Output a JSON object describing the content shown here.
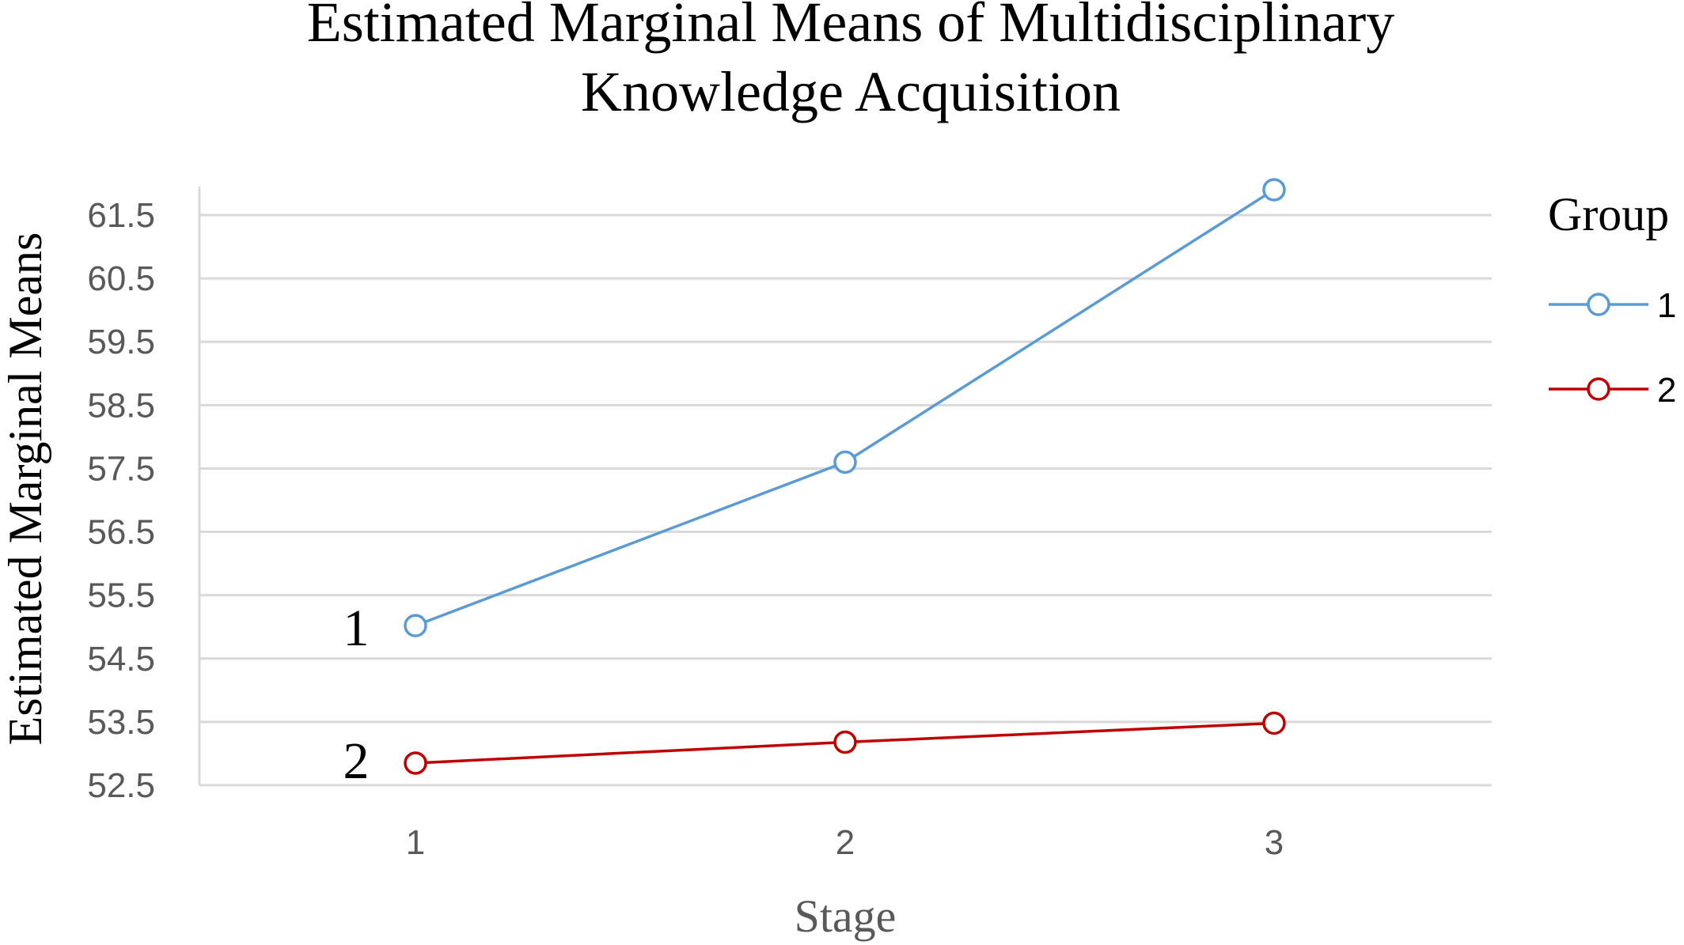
{
  "chart_data": {
    "type": "line",
    "title_line1": "Estimated Marginal Means of Multidisciplinary",
    "title_line2": "Knowledge Acquisition",
    "xlabel": "Stage",
    "ylabel": "Estimated Marginal Means",
    "categories": [
      "1",
      "2",
      "3"
    ],
    "yticks": [
      "61.5",
      "60.5",
      "59.5",
      "58.5",
      "57.5",
      "56.5",
      "55.5",
      "54.5",
      "53.5",
      "52.5"
    ],
    "ylim": [
      52.5,
      61.5
    ],
    "grid": true,
    "legend_title": "Group",
    "legend_position": "right",
    "series": [
      {
        "name": "1",
        "color": "#5b9bd5",
        "values": [
          55.02,
          57.6,
          61.9
        ]
      },
      {
        "name": "2",
        "color": "#c00000",
        "values": [
          52.85,
          53.18,
          53.48
        ]
      }
    ],
    "annotations": [
      "1",
      "2"
    ]
  }
}
